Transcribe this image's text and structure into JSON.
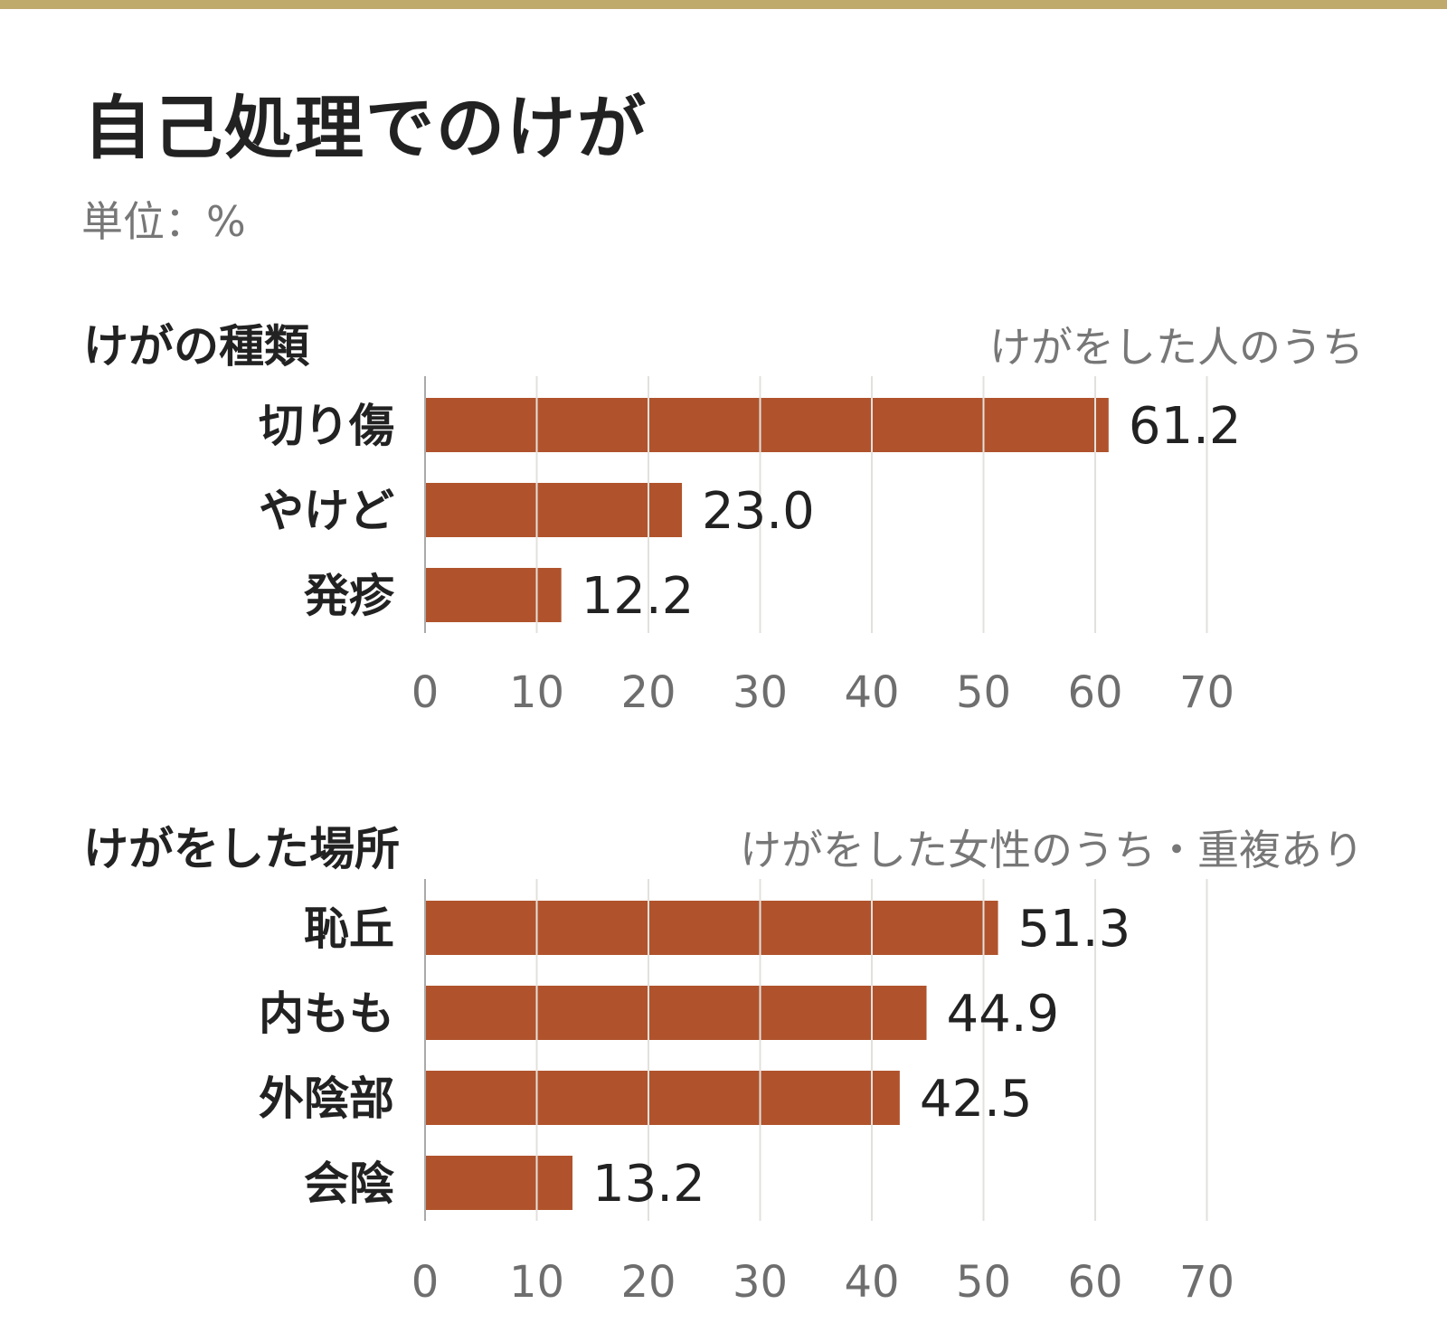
{
  "header": {
    "title": "自己処理でのけが",
    "unit": "単位：%"
  },
  "colors": {
    "bar": "#b0532c",
    "grid": "#e3e1dc",
    "axis": "#aaaaaa",
    "tick_text": "#6e6e6e",
    "label_text": "#222222",
    "note_text": "#777777",
    "accent_rule": "#bfaa6b"
  },
  "chart_data": [
    {
      "type": "bar",
      "orientation": "horizontal",
      "title": "けがの種類",
      "note": "けがをした人のうち",
      "categories": [
        "切り傷",
        "やけど",
        "発疹"
      ],
      "values": [
        61.2,
        23.0,
        12.2
      ],
      "value_labels": [
        "61.2",
        "23.0",
        "12.2"
      ],
      "xlim": [
        0,
        70
      ],
      "xticks": [
        0,
        10,
        20,
        30,
        40,
        50,
        60,
        70
      ],
      "grid": true
    },
    {
      "type": "bar",
      "orientation": "horizontal",
      "title": "けがをした場所",
      "note": "けがをした女性のうち・重複あり",
      "categories": [
        "恥丘",
        "内もも",
        "外陰部",
        "会陰"
      ],
      "values": [
        51.3,
        44.9,
        42.5,
        13.2
      ],
      "value_labels": [
        "51.3",
        "44.9",
        "42.5",
        "13.2"
      ],
      "xlim": [
        0,
        70
      ],
      "xticks": [
        0,
        10,
        20,
        30,
        40,
        50,
        60,
        70
      ],
      "grid": true
    }
  ]
}
